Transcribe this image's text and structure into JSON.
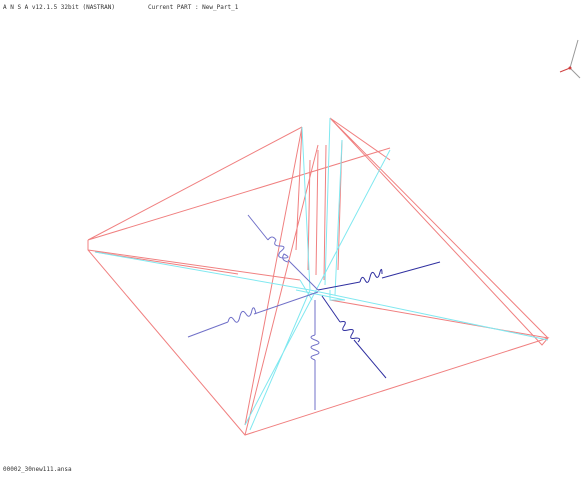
{
  "header": {
    "app_info": "A N S A v12.1.5 32bit (NASTRAN)",
    "current_part": "Current PART : New_Part_1"
  },
  "footer": {
    "filename": "00002_30new111.ansa"
  }
}
